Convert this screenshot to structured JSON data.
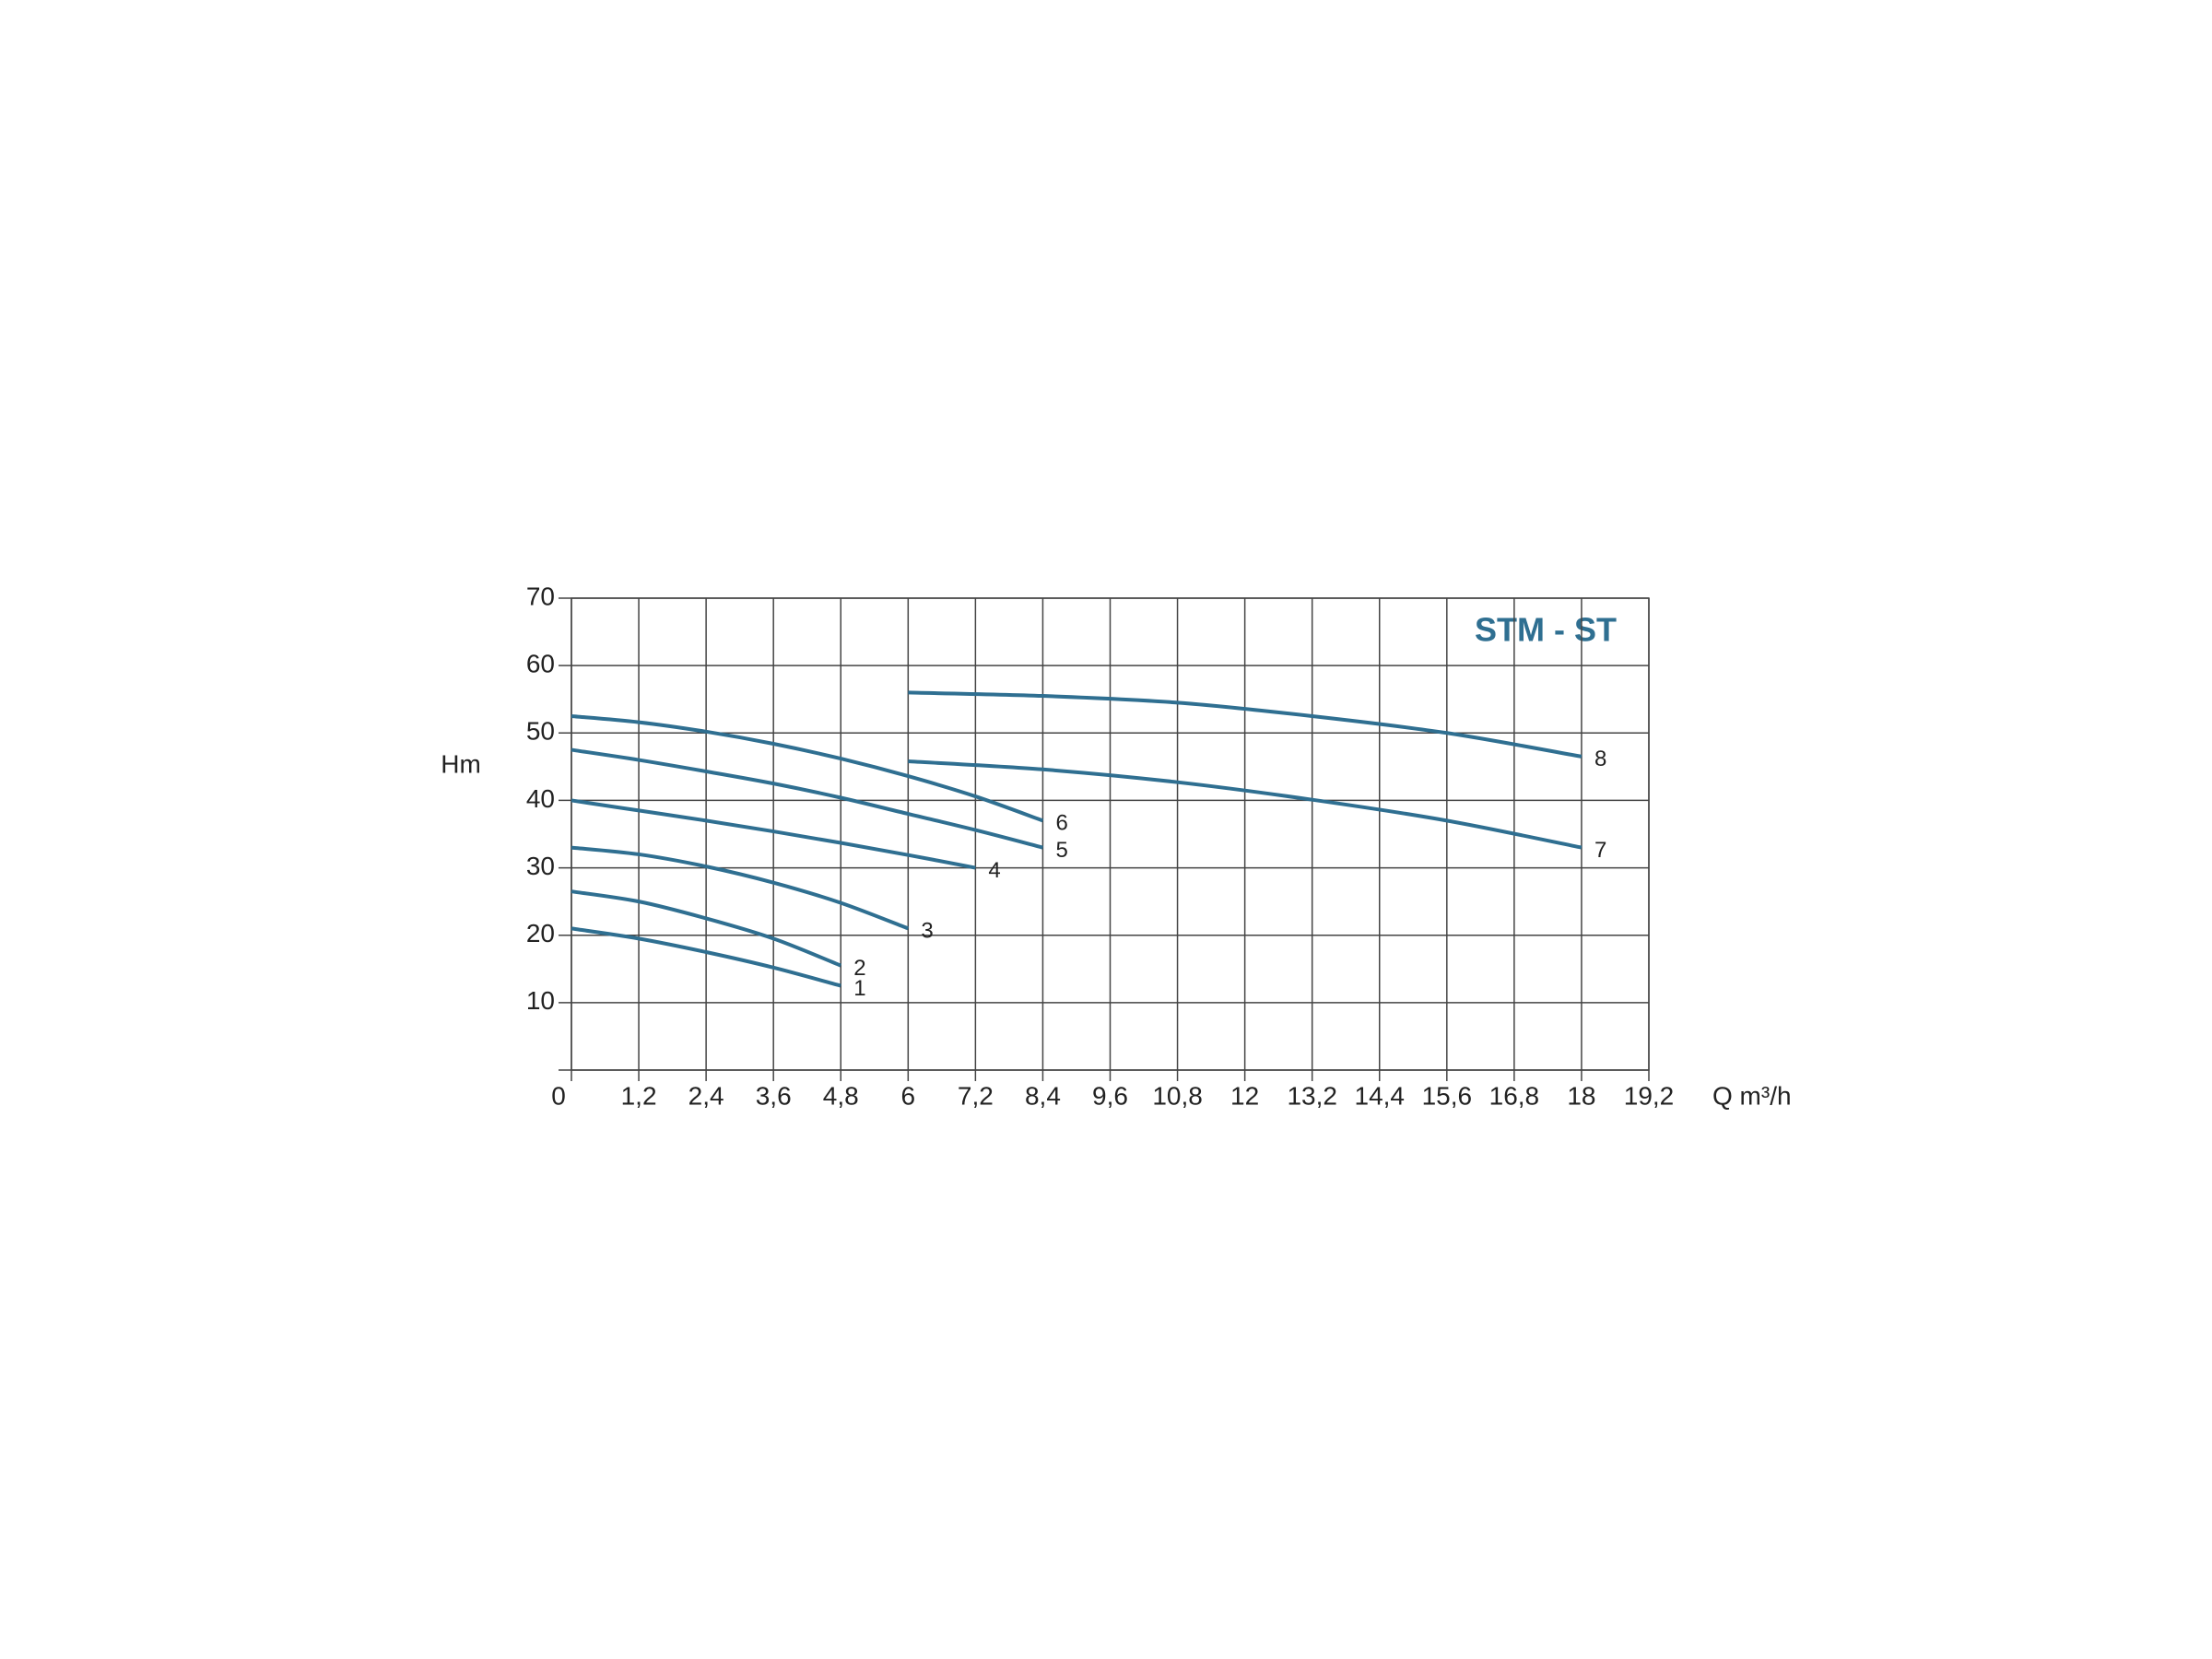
{
  "chart_data": {
    "type": "line",
    "title": "STM - ST",
    "x_label": "Q m³/h",
    "y_label": "Hm",
    "xlim": [
      0,
      19.2
    ],
    "ylim": [
      0,
      70
    ],
    "xticks": [
      0,
      {
        "value": 1.2,
        "label": "1,2"
      },
      {
        "value": 2.4,
        "label": "2,4"
      },
      {
        "value": 3.6,
        "label": "3,6"
      },
      {
        "value": 4.8,
        "label": "4,8"
      },
      6,
      {
        "value": 7.2,
        "label": "7,2"
      },
      {
        "value": 8.4,
        "label": "8,4"
      },
      {
        "value": 9.6,
        "label": "9,6"
      },
      {
        "value": 10.8,
        "label": "10,8"
      },
      12,
      {
        "value": 13.2,
        "label": "13,2"
      },
      {
        "value": 14.4,
        "label": "14,4"
      },
      {
        "value": 15.6,
        "label": "15,6"
      },
      {
        "value": 16.8,
        "label": "16,8"
      },
      18,
      {
        "value": 19.2,
        "label": "19,2"
      }
    ],
    "yticks": [
      10,
      20,
      30,
      40,
      50,
      60,
      70
    ],
    "grid": true,
    "series": [
      {
        "name": "1",
        "color": "#2f6f91",
        "x": [
          0,
          1.2,
          2.4,
          3.6,
          4.8
        ],
        "values": [
          21,
          19.5,
          17.5,
          15.2,
          12.5
        ]
      },
      {
        "name": "2",
        "color": "#2f6f91",
        "x": [
          0,
          1.2,
          2.4,
          3.6,
          4.8
        ],
        "values": [
          26.5,
          25,
          22.5,
          19.5,
          15.5
        ]
      },
      {
        "name": "3",
        "color": "#2f6f91",
        "x": [
          0,
          1.2,
          2.4,
          3.6,
          4.8,
          6
        ],
        "values": [
          33,
          32,
          30.2,
          27.8,
          24.8,
          21
        ]
      },
      {
        "name": "4",
        "color": "#2f6f91",
        "x": [
          0,
          1.2,
          2.4,
          3.6,
          4.8,
          6,
          7.2
        ],
        "values": [
          40,
          38.5,
          37,
          35.4,
          33.7,
          31.9,
          30
        ]
      },
      {
        "name": "5",
        "color": "#2f6f91",
        "x": [
          0,
          1.2,
          2.4,
          3.6,
          4.8,
          6,
          7.2,
          8.4
        ],
        "values": [
          47.5,
          46,
          44.3,
          42.5,
          40.4,
          38,
          35.6,
          33
        ]
      },
      {
        "name": "6",
        "color": "#2f6f91",
        "x": [
          0,
          1.2,
          2.4,
          3.6,
          4.8,
          6,
          7.2,
          8.4
        ],
        "values": [
          52.5,
          51.6,
          50.2,
          48.4,
          46.2,
          43.6,
          40.6,
          37
        ]
      },
      {
        "name": "7",
        "color": "#2f6f91",
        "x": [
          6,
          8.4,
          10.8,
          13.2,
          15.6,
          18
        ],
        "values": [
          45.8,
          44.6,
          42.7,
          40.1,
          37,
          33
        ]
      },
      {
        "name": "8",
        "color": "#2f6f91",
        "x": [
          6,
          8.4,
          10.8,
          13.2,
          15.6,
          18
        ],
        "values": [
          56,
          55.5,
          54.5,
          52.5,
          50,
          46.5
        ]
      }
    ]
  }
}
